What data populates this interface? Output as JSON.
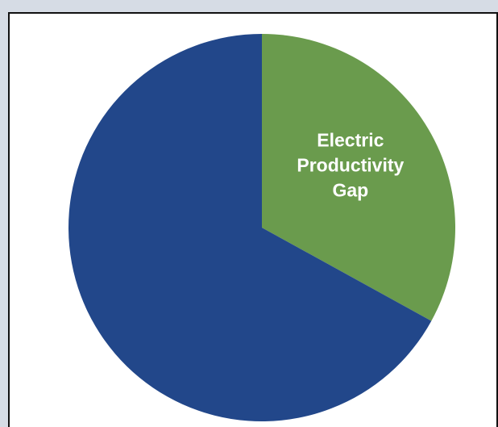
{
  "chart_data": {
    "type": "pie",
    "title": "",
    "start_angle_deg": 0,
    "direction": "clockwise",
    "slices": [
      {
        "label": "Electric\nProductivity\nGap",
        "value": 33,
        "color": "#6a9b4d"
      },
      {
        "label": "",
        "value": 67,
        "color": "#22478a"
      }
    ]
  }
}
